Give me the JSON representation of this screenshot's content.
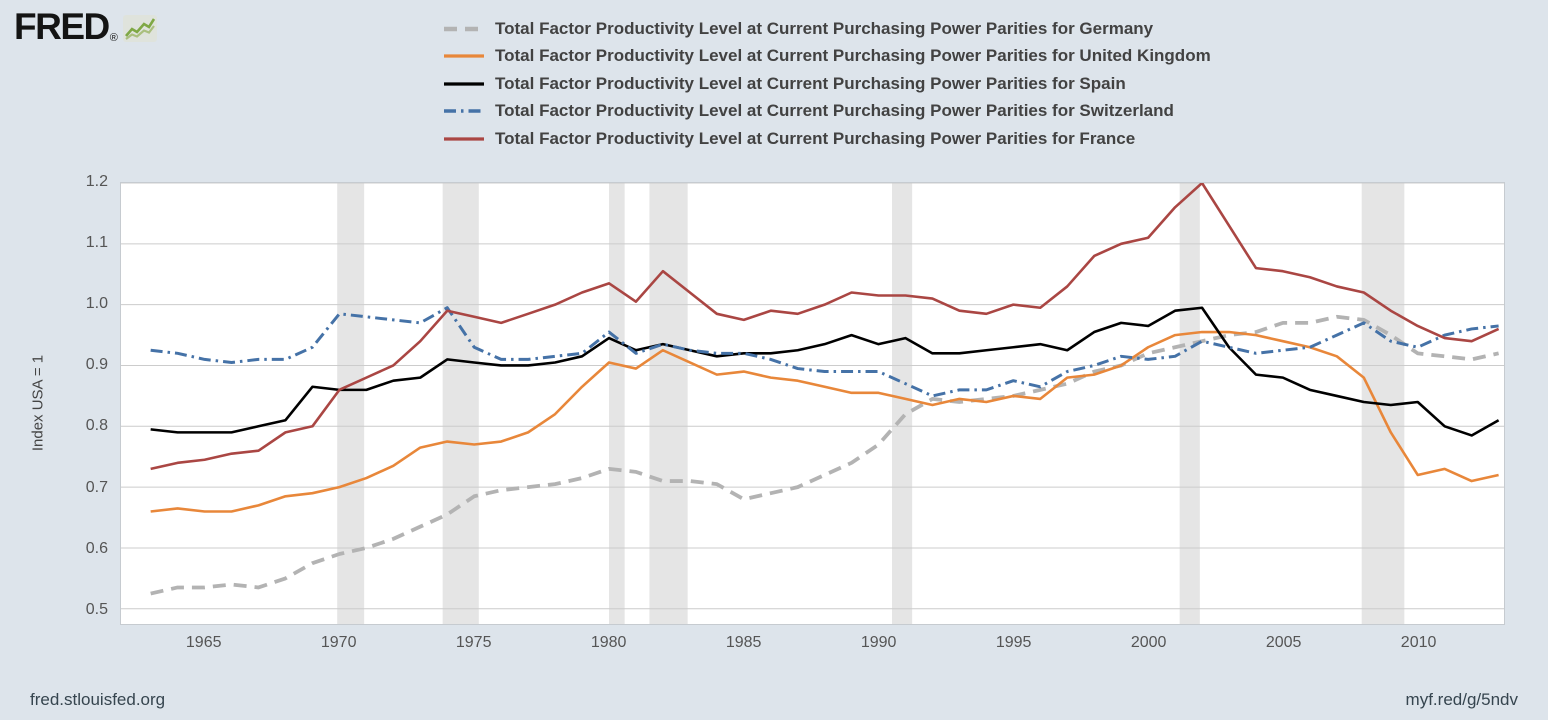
{
  "header": {
    "logo_text": "FRED",
    "logo_reg": "®"
  },
  "footer": {
    "site": "fred.stlouisfed.org",
    "short_url": "myf.red/g/5ndv"
  },
  "chart_data": {
    "type": "line",
    "title": "",
    "xlabel": "",
    "ylabel": "Index USA = 1",
    "xlim": [
      1961.9,
      2013.2
    ],
    "ylim": [
      0.475,
      1.2
    ],
    "yticks": [
      0.5,
      0.6,
      0.7,
      0.8,
      0.9,
      1.0,
      1.1,
      1.2
    ],
    "xticks": [
      1965,
      1970,
      1975,
      1980,
      1985,
      1990,
      1995,
      2000,
      2005,
      2010
    ],
    "grid": true,
    "legend_position": "top",
    "band_color": "#e5e5e5",
    "grid_color": "#cccccc",
    "recession_bands": [
      [
        1969.92,
        1970.92
      ],
      [
        1973.83,
        1975.17
      ],
      [
        1980.0,
        1980.58
      ],
      [
        1981.5,
        1982.92
      ],
      [
        1990.5,
        1991.25
      ],
      [
        2001.17,
        2001.92
      ],
      [
        2007.92,
        2009.5
      ]
    ],
    "x": [
      1963,
      1964,
      1965,
      1966,
      1967,
      1968,
      1969,
      1970,
      1971,
      1972,
      1973,
      1974,
      1975,
      1976,
      1977,
      1978,
      1979,
      1980,
      1981,
      1982,
      1983,
      1984,
      1985,
      1986,
      1987,
      1988,
      1989,
      1990,
      1991,
      1992,
      1993,
      1994,
      1995,
      1996,
      1997,
      1998,
      1999,
      2000,
      2001,
      2002,
      2003,
      2004,
      2005,
      2006,
      2007,
      2008,
      2009,
      2010,
      2011,
      2012,
      2013
    ],
    "series": [
      {
        "key": "germany",
        "name": "Total Factor Productivity Level at Current Purchasing Power Parities for Germany",
        "color": "#b3b3b3",
        "dash": "13 8",
        "width": 3.8,
        "values": [
          0.525,
          0.535,
          0.535,
          0.54,
          0.535,
          0.55,
          0.575,
          0.59,
          0.6,
          0.615,
          0.635,
          0.655,
          0.685,
          0.695,
          0.7,
          0.705,
          0.715,
          0.73,
          0.725,
          0.71,
          0.71,
          0.705,
          0.68,
          0.69,
          0.7,
          0.72,
          0.74,
          0.77,
          0.82,
          0.845,
          0.84,
          0.845,
          0.85,
          0.86,
          0.87,
          0.89,
          0.9,
          0.92,
          0.93,
          0.94,
          0.95,
          0.955,
          0.97,
          0.97,
          0.98,
          0.975,
          0.95,
          0.92,
          0.915,
          0.91,
          0.92
        ]
      },
      {
        "key": "united-kingdom",
        "name": "Total Factor Productivity Level at Current Purchasing Power Parities for United Kingdom",
        "color": "#e8873a",
        "dash": null,
        "width": 2.6,
        "values": [
          0.66,
          0.665,
          0.66,
          0.66,
          0.67,
          0.685,
          0.69,
          0.7,
          0.715,
          0.735,
          0.765,
          0.775,
          0.77,
          0.775,
          0.79,
          0.82,
          0.865,
          0.905,
          0.895,
          0.925,
          0.905,
          0.885,
          0.89,
          0.88,
          0.875,
          0.865,
          0.855,
          0.855,
          0.845,
          0.835,
          0.845,
          0.84,
          0.85,
          0.845,
          0.88,
          0.885,
          0.9,
          0.93,
          0.95,
          0.955,
          0.955,
          0.95,
          0.94,
          0.93,
          0.915,
          0.88,
          0.79,
          0.72,
          0.73,
          0.71,
          0.72
        ]
      },
      {
        "key": "spain",
        "name": "Total Factor Productivity Level at Current Purchasing Power Parities for Spain",
        "color": "#000000",
        "dash": null,
        "width": 2.6,
        "values": [
          0.795,
          0.79,
          0.79,
          0.79,
          0.8,
          0.81,
          0.865,
          0.86,
          0.86,
          0.875,
          0.88,
          0.91,
          0.905,
          0.9,
          0.9,
          0.905,
          0.915,
          0.945,
          0.925,
          0.935,
          0.925,
          0.915,
          0.92,
          0.92,
          0.925,
          0.935,
          0.95,
          0.935,
          0.945,
          0.92,
          0.92,
          0.925,
          0.93,
          0.935,
          0.925,
          0.955,
          0.97,
          0.965,
          0.99,
          0.995,
          0.93,
          0.885,
          0.88,
          0.86,
          0.85,
          0.84,
          0.835,
          0.84,
          0.8,
          0.785,
          0.81
        ]
      },
      {
        "key": "switzerland",
        "name": "Total Factor Productivity Level at Current Purchasing Power Parities for Switzerland",
        "color": "#4572a7",
        "dash": "12 5 2.5 5",
        "width": 3,
        "values": [
          0.925,
          0.92,
          0.91,
          0.905,
          0.91,
          0.91,
          0.93,
          0.985,
          0.98,
          0.975,
          0.97,
          0.995,
          0.93,
          0.91,
          0.91,
          0.915,
          0.92,
          0.955,
          0.92,
          0.935,
          0.925,
          0.92,
          0.92,
          0.91,
          0.895,
          0.89,
          0.89,
          0.89,
          0.87,
          0.85,
          0.86,
          0.86,
          0.875,
          0.865,
          0.89,
          0.9,
          0.915,
          0.91,
          0.915,
          0.94,
          0.93,
          0.92,
          0.925,
          0.93,
          0.95,
          0.97,
          0.94,
          0.93,
          0.95,
          0.96,
          0.965
        ]
      },
      {
        "key": "france",
        "name": "Total Factor Productivity Level at Current Purchasing Power Parities for France",
        "color": "#aa4643",
        "dash": null,
        "width": 2.6,
        "values": [
          0.73,
          0.74,
          0.745,
          0.755,
          0.76,
          0.79,
          0.8,
          0.86,
          0.88,
          0.9,
          0.94,
          0.99,
          0.98,
          0.97,
          0.985,
          1.0,
          1.02,
          1.035,
          1.005,
          1.055,
          1.02,
          0.985,
          0.975,
          0.99,
          0.985,
          1.0,
          1.02,
          1.015,
          1.015,
          1.01,
          0.99,
          0.985,
          1.0,
          0.995,
          1.03,
          1.08,
          1.1,
          1.11,
          1.16,
          1.2,
          1.13,
          1.06,
          1.055,
          1.045,
          1.03,
          1.02,
          0.99,
          0.965,
          0.945,
          0.94,
          0.96
        ]
      }
    ]
  }
}
